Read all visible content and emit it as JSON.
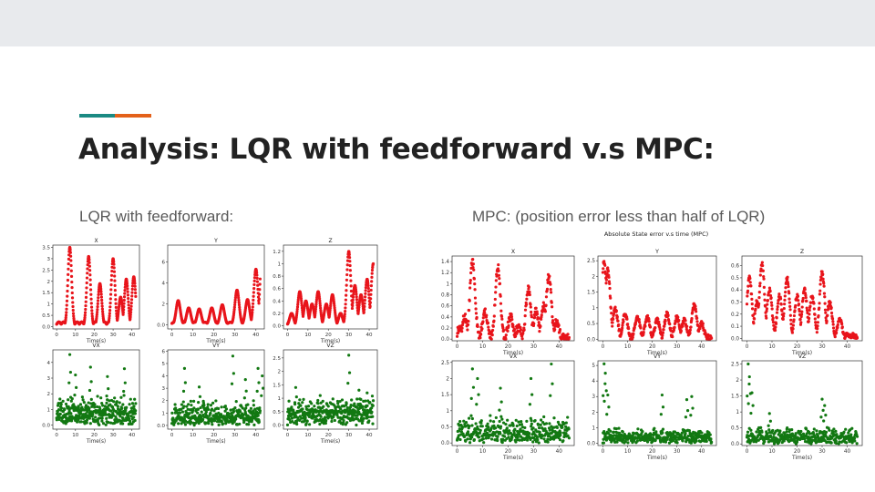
{
  "slide": {
    "title": "Analysis: LQR with feedforward v.s MPC:",
    "left_caption": "LQR with feedforward:",
    "right_caption": "MPC: (position error less than  half of LQR)",
    "accent_colors": [
      "#1b8a83",
      "#e4611a"
    ]
  },
  "chart_data": [
    {
      "id": "lqr",
      "type": "scatter",
      "suptitle": "",
      "panels": [
        {
          "title": "X",
          "xlabel": "Time(s)",
          "color": "#e8141b",
          "xlim": [
            -2,
            44
          ],
          "ylim": [
            -0.1,
            3.6
          ],
          "xticks": [
            0,
            10,
            20,
            30,
            40
          ],
          "yticks": [
            0.0,
            0.5,
            1.0,
            1.5,
            2.0,
            2.5,
            3.0,
            3.5
          ],
          "shape": "wave",
          "peaks": [
            [
              7,
              3.5
            ],
            [
              17,
              3.1
            ],
            [
              23,
              1.9
            ],
            [
              30,
              3.0
            ],
            [
              34,
              1.3
            ],
            [
              37,
              2.1
            ],
            [
              41,
              2.2
            ]
          ],
          "noise": 0.0
        },
        {
          "title": "Y",
          "xlabel": "Time(s)",
          "color": "#e8141b",
          "xlim": [
            -2,
            44
          ],
          "ylim": [
            -0.4,
            7.6
          ],
          "xticks": [
            0,
            10,
            20,
            30,
            40
          ],
          "yticks": [
            0,
            2,
            4,
            6
          ],
          "shape": "wave",
          "peaks": [
            [
              3,
              2.3
            ],
            [
              8,
              1.6
            ],
            [
              13,
              1.5
            ],
            [
              19,
              1.6
            ],
            [
              24,
              1.9
            ],
            [
              31,
              3.3
            ],
            [
              36,
              2.4
            ],
            [
              40,
              5.3
            ],
            [
              43,
              7.2
            ]
          ],
          "noise": 0.0
        },
        {
          "title": "Z",
          "xlabel": "Time(s)",
          "color": "#e8141b",
          "xlim": [
            -2,
            44
          ],
          "ylim": [
            -0.05,
            1.3
          ],
          "xticks": [
            0,
            10,
            20,
            30,
            40
          ],
          "yticks": [
            0.0,
            0.2,
            0.4,
            0.6,
            0.8,
            1.0,
            1.2
          ],
          "shape": "wave",
          "peaks": [
            [
              2,
              0.2
            ],
            [
              6,
              0.55
            ],
            [
              9,
              0.4
            ],
            [
              12,
              0.35
            ],
            [
              15,
              0.55
            ],
            [
              19,
              0.35
            ],
            [
              22,
              0.5
            ],
            [
              26,
              0.2
            ],
            [
              30,
              1.2
            ],
            [
              33,
              0.65
            ],
            [
              36,
              0.5
            ],
            [
              39,
              0.75
            ],
            [
              42,
              1.0
            ]
          ],
          "noise": 0.0
        },
        {
          "title": "VX",
          "xlabel": "Time(s)",
          "color": "#127812",
          "xlim": [
            -2,
            44
          ],
          "ylim": [
            -0.25,
            4.8
          ],
          "xticks": [
            0,
            10,
            20,
            30,
            40
          ],
          "yticks": [
            0,
            1,
            2,
            3,
            4
          ],
          "shape": "noise",
          "base": 0.9,
          "noise": 1.1,
          "spikes": [
            [
              7,
              4.5
            ],
            [
              10,
              3.2
            ],
            [
              18,
              3.7
            ],
            [
              27,
              3.1
            ],
            [
              36,
              3.6
            ]
          ]
        },
        {
          "title": "VY",
          "xlabel": "Time(s)",
          "color": "#127812",
          "xlim": [
            -2,
            44
          ],
          "ylim": [
            -0.3,
            6.1
          ],
          "xticks": [
            0,
            10,
            20,
            30,
            40
          ],
          "yticks": [
            0,
            1,
            2,
            3,
            4,
            5,
            6
          ],
          "shape": "noise",
          "base": 0.8,
          "noise": 1.3,
          "spikes": [
            [
              6,
              4.6
            ],
            [
              13,
              3.1
            ],
            [
              29,
              5.6
            ],
            [
              35,
              3.7
            ],
            [
              41,
              4.6
            ],
            [
              43,
              4.0
            ]
          ]
        },
        {
          "title": "VZ",
          "xlabel": "Time(s)",
          "color": "#127812",
          "xlim": [
            -2,
            44
          ],
          "ylim": [
            -0.15,
            2.8
          ],
          "xticks": [
            0,
            10,
            20,
            30,
            40
          ],
          "yticks": [
            0.0,
            0.5,
            1.0,
            1.5,
            2.0,
            2.5
          ],
          "shape": "noise",
          "base": 0.55,
          "noise": 0.55,
          "spikes": [
            [
              4,
              1.4
            ],
            [
              16,
              1.1
            ],
            [
              30,
              2.6
            ],
            [
              35,
              1.3
            ],
            [
              39,
              1.2
            ]
          ]
        }
      ]
    },
    {
      "id": "mpc",
      "type": "scatter",
      "suptitle": "Absolute State error v.s time (MPC)",
      "panels": [
        {
          "title": "X",
          "xlabel": "Time(s)",
          "color": "#e8141b",
          "xlim": [
            -2,
            46
          ],
          "ylim": [
            -0.03,
            1.5
          ],
          "xticks": [
            0,
            10,
            20,
            30,
            40
          ],
          "yticks": [
            0.0,
            0.2,
            0.4,
            0.6,
            0.8,
            1.0,
            1.2,
            1.4
          ],
          "shape": "wave",
          "peaks": [
            [
              1,
              0.2
            ],
            [
              3,
              0.4
            ],
            [
              6,
              1.4
            ],
            [
              11,
              0.5
            ],
            [
              16,
              1.3
            ],
            [
              21,
              0.4
            ],
            [
              24,
              0.2
            ],
            [
              28,
              0.9
            ],
            [
              31,
              0.5
            ],
            [
              34,
              0.6
            ],
            [
              36,
              1.15
            ],
            [
              39,
              0.3
            ]
          ],
          "noise": 0.05
        },
        {
          "title": "Y",
          "xlabel": "Time(s)",
          "color": "#e8141b",
          "xlim": [
            -2,
            46
          ],
          "ylim": [
            -0.05,
            2.65
          ],
          "xticks": [
            0,
            10,
            20,
            30,
            40
          ],
          "yticks": [
            0.0,
            0.5,
            1.0,
            1.5,
            2.0,
            2.5
          ],
          "shape": "wave",
          "peaks": [
            [
              0.5,
              2.5
            ],
            [
              2,
              2.2
            ],
            [
              5,
              1.0
            ],
            [
              9,
              0.8
            ],
            [
              14,
              0.7
            ],
            [
              18,
              0.7
            ],
            [
              22,
              0.6
            ],
            [
              26,
              0.8
            ],
            [
              30,
              0.7
            ],
            [
              33,
              0.6
            ],
            [
              37,
              1.1
            ],
            [
              40,
              0.5
            ]
          ],
          "noise": 0.03
        },
        {
          "title": "Z",
          "xlabel": "Time(s)",
          "color": "#e8141b",
          "xlim": [
            -2,
            46
          ],
          "ylim": [
            -0.02,
            0.68
          ],
          "xticks": [
            0,
            10,
            20,
            30,
            40
          ],
          "yticks": [
            0.0,
            0.1,
            0.2,
            0.3,
            0.4,
            0.5,
            0.6
          ],
          "shape": "wave",
          "peaks": [
            [
              1,
              0.5
            ],
            [
              4,
              0.3
            ],
            [
              6,
              0.62
            ],
            [
              9,
              0.4
            ],
            [
              13,
              0.35
            ],
            [
              16,
              0.5
            ],
            [
              20,
              0.35
            ],
            [
              23,
              0.4
            ],
            [
              26,
              0.35
            ],
            [
              30,
              0.55
            ],
            [
              33,
              0.3
            ],
            [
              37,
              0.15
            ]
          ],
          "noise": 0.03
        },
        {
          "title": "VX",
          "xlabel": "Time(s)",
          "color": "#127812",
          "xlim": [
            -2,
            46
          ],
          "ylim": [
            -0.08,
            2.55
          ],
          "xticks": [
            0,
            10,
            20,
            30,
            40
          ],
          "yticks": [
            0.0,
            0.5,
            1.0,
            1.5,
            2.0,
            2.5
          ],
          "shape": "noise",
          "base": 0.35,
          "noise": 0.55,
          "spikes": [
            [
              6,
              2.3
            ],
            [
              8,
              2.0
            ],
            [
              17,
              1.7
            ],
            [
              29,
              2.0
            ],
            [
              37,
              2.45
            ]
          ]
        },
        {
          "title": "VY",
          "xlabel": "Time(s)",
          "color": "#127812",
          "xlim": [
            -2,
            46
          ],
          "ylim": [
            -0.15,
            5.3
          ],
          "xticks": [
            0,
            10,
            20,
            30,
            40
          ],
          "yticks": [
            0,
            1,
            2,
            3,
            4,
            5
          ],
          "shape": "noise",
          "base": 0.4,
          "noise": 0.6,
          "spikes": [
            [
              0.5,
              5.1
            ],
            [
              1,
              4.5
            ],
            [
              2,
              3.1
            ],
            [
              24,
              3.1
            ],
            [
              34,
              2.8
            ],
            [
              36,
              3.0
            ]
          ]
        },
        {
          "title": "VZ",
          "xlabel": "Time(s)",
          "color": "#127812",
          "xlim": [
            -2,
            46
          ],
          "ylim": [
            -0.05,
            2.6
          ],
          "xticks": [
            0,
            10,
            20,
            30,
            40
          ],
          "yticks": [
            0.0,
            0.5,
            1.0,
            1.5,
            2.0,
            2.5
          ],
          "shape": "noise",
          "base": 0.25,
          "noise": 0.3,
          "spikes": [
            [
              0.5,
              2.5
            ],
            [
              1,
              2.1
            ],
            [
              2,
              1.6
            ],
            [
              9,
              0.95
            ],
            [
              30,
              1.4
            ],
            [
              31,
              1.2
            ]
          ]
        }
      ]
    }
  ]
}
